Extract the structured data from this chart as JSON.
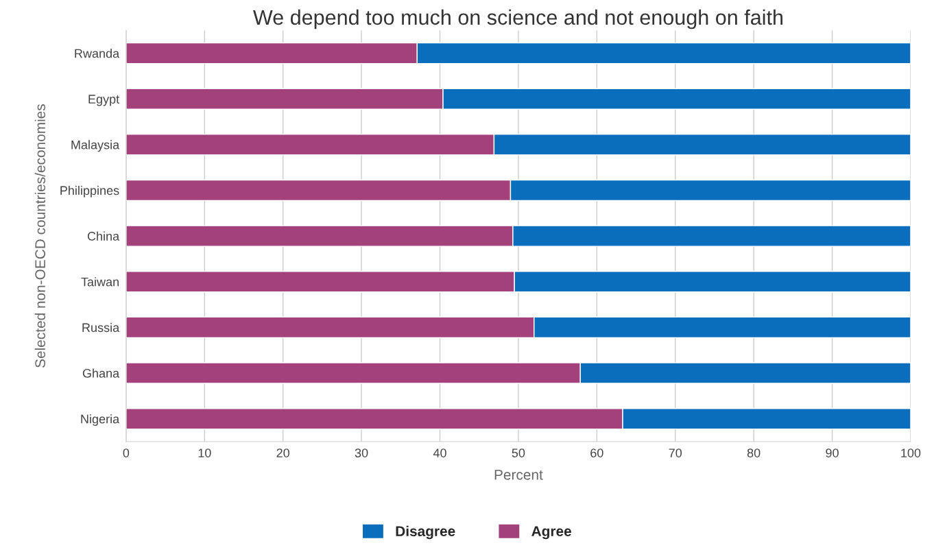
{
  "chart_data": {
    "type": "bar",
    "orientation": "horizontal",
    "stacked": true,
    "title": "We depend too much on science and not enough on faith",
    "xlabel": "Percent",
    "ylabel": "Selected non-OECD countries/economies",
    "categories": [
      "Rwanda",
      "Egypt",
      "Malaysia",
      "Philippines",
      "China",
      "Taiwan",
      "Russia",
      "Ghana",
      "Nigeria"
    ],
    "series": [
      {
        "name": "Agree",
        "color": "#a3427a",
        "values": [
          37.1,
          40.4,
          46.9,
          49.0,
          49.3,
          49.5,
          52.0,
          57.9,
          63.3
        ]
      },
      {
        "name": "Disagree",
        "color": "#0a6ebd",
        "values": [
          62.9,
          59.6,
          53.1,
          51.0,
          50.7,
          50.5,
          48.0,
          42.1,
          36.7
        ]
      }
    ],
    "xlim": [
      0,
      100
    ],
    "xticks": [
      0,
      10,
      20,
      30,
      40,
      50,
      60,
      70,
      80,
      90,
      100
    ],
    "grid": "x",
    "legend": "bottom"
  }
}
